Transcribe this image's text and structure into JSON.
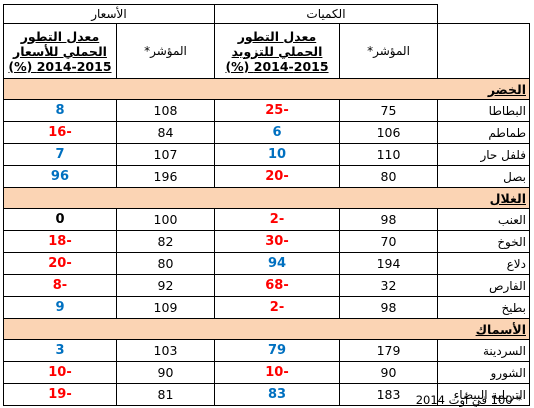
{
  "header": {
    "quantities_label": "الكميات",
    "prices_label": "الأسعار",
    "index_label": "المؤشر*",
    "supply_rate_label": "معدل التطور الجملي للتزويد 2015-2014 (%)",
    "price_rate_label": "معدل التطور الجملي للأسعار 2015-2014 (%)"
  },
  "colors": {
    "section_fill": "#fbd4b4",
    "negative": "#ff0000",
    "positive": "#0070c0"
  },
  "sections": [
    {
      "title": "الخضر",
      "rows": [
        {
          "name": "البطاطا",
          "qty_index": "75",
          "qty_rate": "-25",
          "price_index": "108",
          "price_rate": "8"
        },
        {
          "name": "طماطم",
          "qty_index": "106",
          "qty_rate": "6",
          "price_index": "84",
          "price_rate": "-16"
        },
        {
          "name": "فلفل حار",
          "qty_index": "110",
          "qty_rate": "10",
          "price_index": "107",
          "price_rate": "7"
        },
        {
          "name": "بصل",
          "qty_index": "80",
          "qty_rate": "-20",
          "price_index": "196",
          "price_rate": "96"
        }
      ]
    },
    {
      "title": "الغلال",
      "rows": [
        {
          "name": "العنب",
          "qty_index": "98",
          "qty_rate": "-2",
          "price_index": "100",
          "price_rate": "0"
        },
        {
          "name": "الخوخ",
          "qty_index": "70",
          "qty_rate": "-30",
          "price_index": "82",
          "price_rate": "-18"
        },
        {
          "name": "دلاع",
          "qty_index": "194",
          "qty_rate": "94",
          "price_index": "80",
          "price_rate": "-20"
        },
        {
          "name": "الفارص",
          "qty_index": "32",
          "qty_rate": "-68",
          "price_index": "92",
          "price_rate": "-8"
        },
        {
          "name": "بطيخ",
          "qty_index": "98",
          "qty_rate": "-2",
          "price_index": "109",
          "price_rate": "9"
        }
      ]
    },
    {
      "title": "الأسماك",
      "rows": [
        {
          "name": "السردينة",
          "qty_index": "179",
          "qty_rate": "79",
          "price_index": "103",
          "price_rate": "3"
        },
        {
          "name": "الشورو",
          "qty_index": "90",
          "qty_rate": "-10",
          "price_index": "90",
          "price_rate": "-10"
        },
        {
          "name": "التريلية البيضاء",
          "qty_index": "183",
          "qty_rate": "83",
          "price_index": "81",
          "price_rate": "-19"
        }
      ]
    }
  ],
  "footnote": "* 100 في أوت 2014"
}
